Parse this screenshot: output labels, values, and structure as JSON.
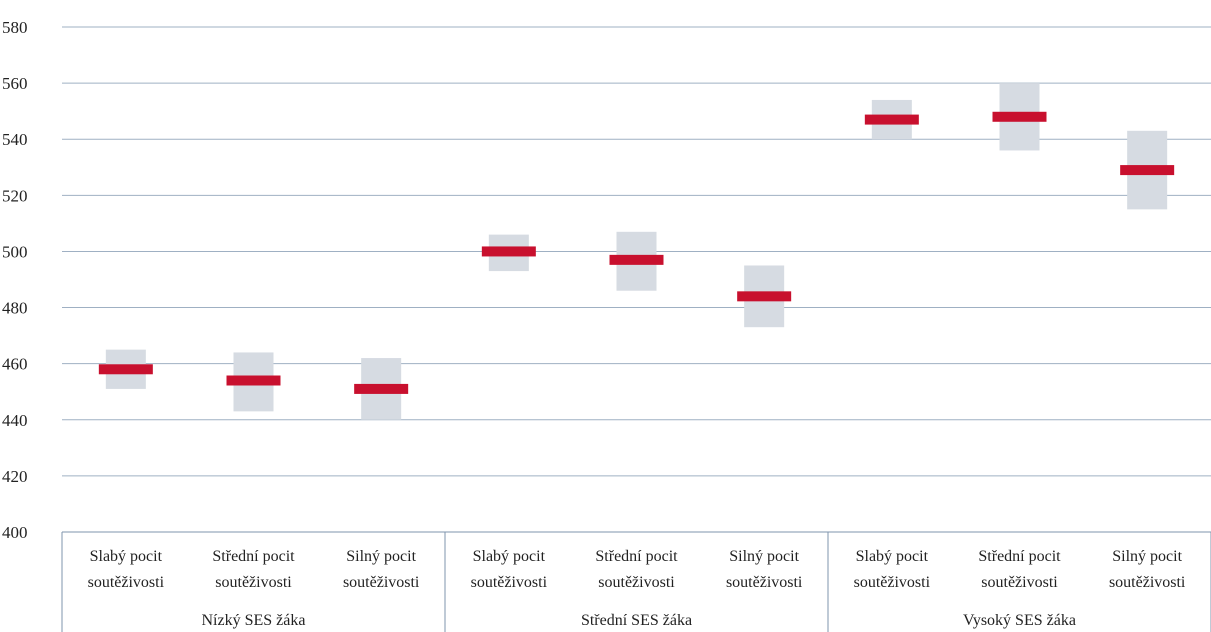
{
  "chart_data": {
    "type": "range",
    "y_ticks": [
      "400",
      "420",
      "440",
      "460",
      "480",
      "500",
      "520",
      "540",
      "560",
      "580"
    ],
    "ylim": [
      400,
      580
    ],
    "grid": true,
    "groups": [
      {
        "label": "Nízký SES žáka",
        "categories": [
          {
            "line1": "Slabý pocit",
            "line2": "soutěživosti",
            "value": 458,
            "low": 451,
            "high": 465
          },
          {
            "line1": "Střední pocit",
            "line2": "soutěživosti",
            "value": 454,
            "low": 443,
            "high": 464
          },
          {
            "line1": "Silný pocit",
            "line2": "soutěživosti",
            "value": 451,
            "low": 440,
            "high": 462
          }
        ]
      },
      {
        "label": "Střední SES žáka",
        "categories": [
          {
            "line1": "Slabý pocit",
            "line2": "soutěživosti",
            "value": 500,
            "low": 493,
            "high": 506
          },
          {
            "line1": "Střední pocit",
            "line2": "soutěživosti",
            "value": 497,
            "low": 486,
            "high": 507
          },
          {
            "line1": "Silný pocit",
            "line2": "soutěživosti",
            "value": 484,
            "low": 473,
            "high": 495
          }
        ]
      },
      {
        "label": "Vysoký SES žáka",
        "categories": [
          {
            "line1": "Slabý pocit",
            "line2": "soutěživosti",
            "value": 547,
            "low": 540,
            "high": 554
          },
          {
            "line1": "Střední pocit",
            "line2": "soutěživosti",
            "value": 548,
            "low": 536,
            "high": 560
          },
          {
            "line1": "Silný pocit",
            "line2": "soutěživosti",
            "value": 529,
            "low": 515,
            "high": 543
          }
        ]
      }
    ],
    "colors": {
      "point": "#c8102e",
      "range": "#d6dbe2",
      "grid": "#9fb0c3",
      "axis": "#7f94ad"
    }
  }
}
